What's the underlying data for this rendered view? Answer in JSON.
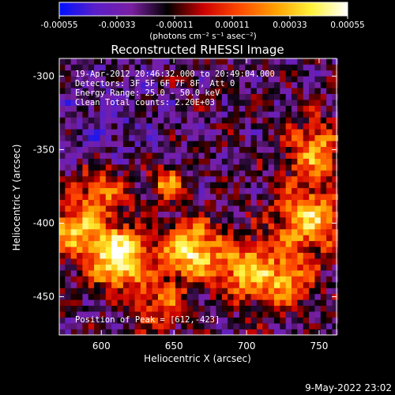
{
  "chart_data": {
    "type": "heatmap",
    "title": "Reconstructed RHESSI Image",
    "xlabel": "Heliocentric X (arcsec)",
    "ylabel": "Heliocentric Y (arcsec)",
    "xlim": [
      571,
      762
    ],
    "ylim": [
      -476,
      -288
    ],
    "x_ticks": [
      600,
      650,
      700,
      750
    ],
    "y_ticks": [
      -300,
      -350,
      -400,
      -450
    ],
    "colorbar": {
      "ticks": [
        "-0.00055",
        "-0.00033",
        "-0.00011",
        "0.00011",
        "0.00033",
        "0.00055"
      ],
      "range": [
        -0.00055,
        0.00055
      ],
      "unit_label": "(photons cm⁻² s⁻¹ asec⁻²)",
      "colors": [
        "#0010ff",
        "#5a1fc9",
        "#7b1fa2",
        "#000000",
        "#cc0000",
        "#ff4a00",
        "#ffa000",
        "#fff23a",
        "#ffffff"
      ]
    },
    "annotations": [
      "19-Apr-2012 20:46:32.000 to 20:49:04.000",
      "Detectors: 3F 5F 6F 7F 8F, Att 0",
      "Energy Range: 25.0 - 50.0 keV",
      "Clean     Total counts: 2.20E+03"
    ],
    "peak_label": "Position of Peak = [612,-423]",
    "peak": [
      612,
      -423
    ],
    "bright_sources": [
      {
        "x": 612,
        "y": -423,
        "intensity": 1.0,
        "size": 14
      },
      {
        "x": 662,
        "y": -418,
        "intensity": 0.85,
        "size": 14
      },
      {
        "x": 580,
        "y": -405,
        "intensity": 0.7,
        "size": 12
      },
      {
        "x": 600,
        "y": -378,
        "intensity": 0.55,
        "size": 13
      },
      {
        "x": 645,
        "y": -372,
        "intensity": 0.6,
        "size": 8
      },
      {
        "x": 700,
        "y": -432,
        "intensity": 0.7,
        "size": 14
      },
      {
        "x": 742,
        "y": -398,
        "intensity": 0.75,
        "size": 16
      },
      {
        "x": 748,
        "y": -350,
        "intensity": 0.6,
        "size": 14
      },
      {
        "x": 728,
        "y": -440,
        "intensity": 0.55,
        "size": 12
      },
      {
        "x": 640,
        "y": -455,
        "intensity": 0.45,
        "size": 12
      }
    ]
  },
  "footer": {
    "date": "9-May-2022 23:02"
  }
}
